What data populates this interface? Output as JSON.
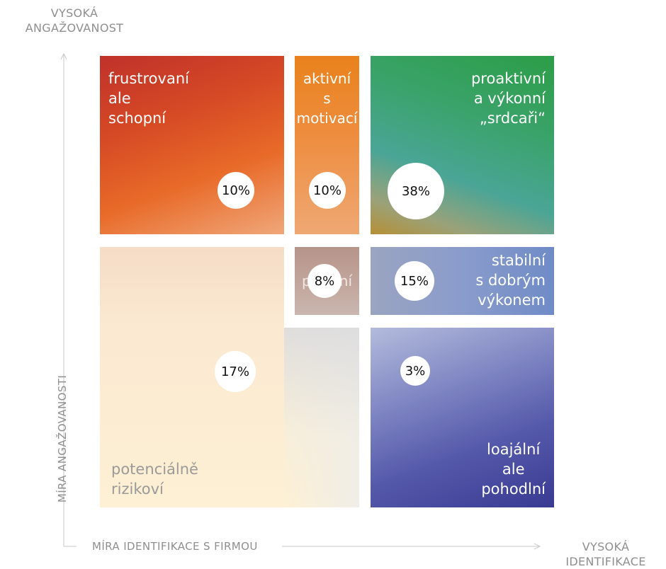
{
  "axes": {
    "y_top_label": "VYSOKÁ\nANGAŽOVANOST",
    "y_title": "MÍRA ANGAŽOVANOSTI",
    "x_title": "MÍRA IDENTIFIKACE S FIRMOU",
    "x_right_label": "VYSOKÁ\nIDENTIFIKACE"
  },
  "segments": {
    "frustrated": {
      "label": "frustrovaní\nale\nschopní",
      "value": "10%"
    },
    "motivated": {
      "label": "aktivní\ns\nmotivací",
      "value": "10%"
    },
    "proactive": {
      "label": "proaktivní\na výkonní\n„srdcaři“",
      "value": "38%"
    },
    "middle": {
      "label": "pasivní",
      "value": "8%"
    },
    "stable": {
      "label": "stabilní\ns dobrým\nvýkonem",
      "value": "15%"
    },
    "risky": {
      "label": "potenciálně\nrizikoví",
      "value": "17%"
    },
    "loyal": {
      "label": "loajální\nale\npohodlní",
      "value": "3%"
    }
  },
  "colors": {
    "frustrated": "#c0392b",
    "motivated": "#e8811f",
    "proactive": "#2e9e4e",
    "stable": "#6f8bc5",
    "loyal": "#3a3d95",
    "risky": "#fdefcf",
    "axis": "#8f8f8f"
  }
}
